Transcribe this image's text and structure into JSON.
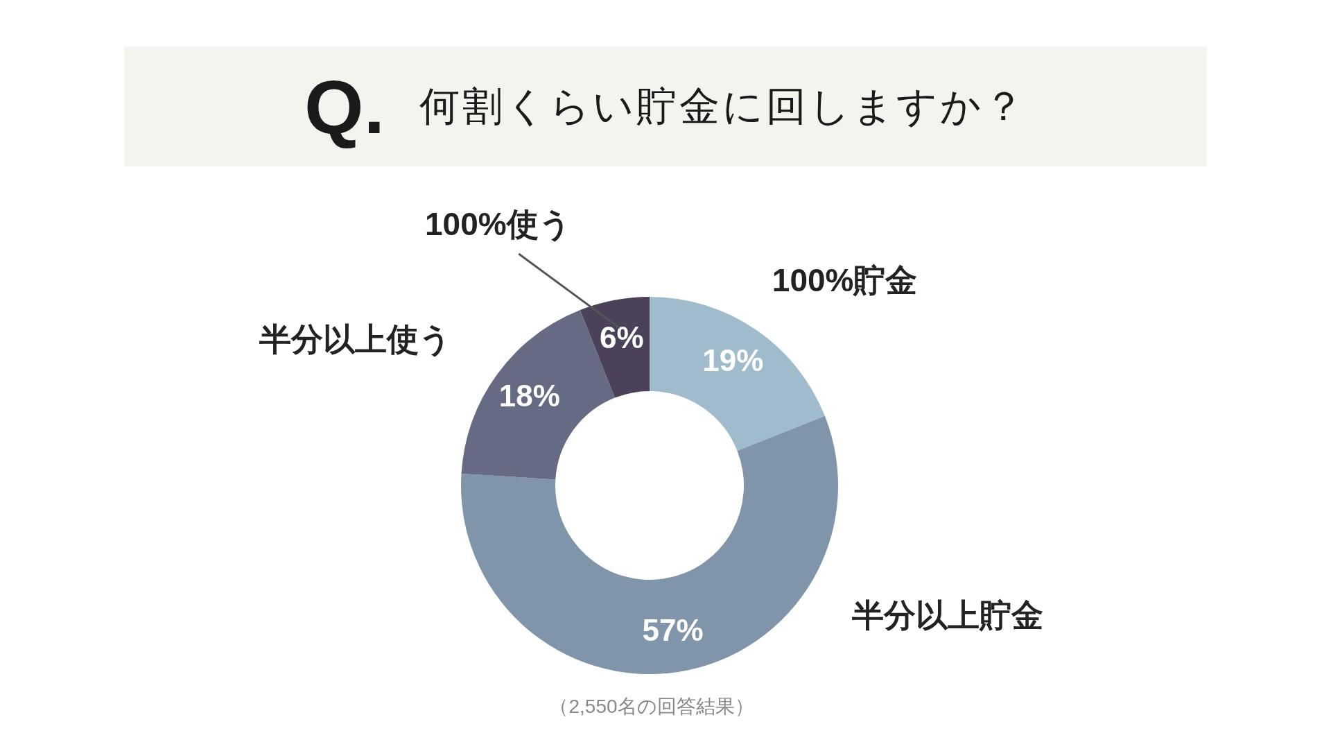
{
  "chart_data": {
    "type": "donut",
    "title": "Q. 何割くらい貯金に回しますか？",
    "categories": [
      "100%貯金",
      "半分以上貯金",
      "半分以上使う",
      "100%使う"
    ],
    "values": [
      19,
      57,
      18,
      6
    ],
    "value_labels": [
      "19%",
      "57%",
      "18%",
      "6%"
    ],
    "colors": [
      "#a0bccc",
      "#8195aa",
      "#666a82",
      "#4b4259"
    ],
    "legend": false,
    "annotations": [
      "（2,550名の回答結果）"
    ]
  }
}
